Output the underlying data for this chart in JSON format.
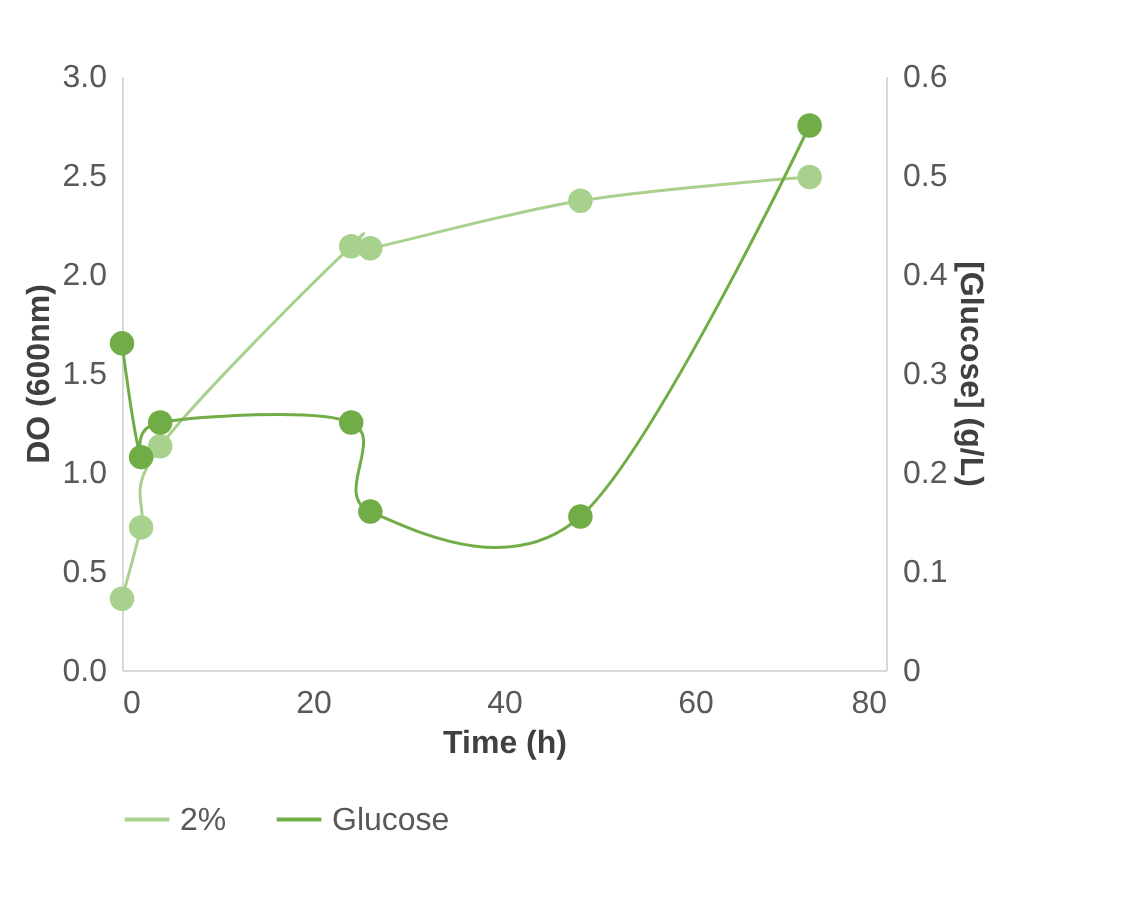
{
  "chart_data": {
    "type": "line",
    "xlabel": "Time (h)",
    "ylabel": "DO (600nm)",
    "y2label": "[Glucose] (g/L)",
    "x": [
      0,
      2,
      4,
      24,
      26,
      48,
      72
    ],
    "series": [
      {
        "name": "2%",
        "color": "#a9d18e",
        "values": [
          0.36,
          0.72,
          1.13,
          2.14,
          2.13,
          2.37,
          2.49
        ]
      },
      {
        "name": "Glucose",
        "color": "#70ad47",
        "axis": "y2",
        "values": [
          0.33,
          0.215,
          0.25,
          0.25,
          0.16,
          0.155,
          0.55
        ]
      }
    ],
    "xlim": [
      0,
      80
    ],
    "xticks": [
      0,
      20,
      40,
      60,
      80
    ],
    "ylim": [
      0,
      3
    ],
    "yticks": [
      {
        "value": 0,
        "label": "0.0"
      },
      {
        "value": 0.5,
        "label": "0.5"
      },
      {
        "value": 1,
        "label": "1.0"
      },
      {
        "value": 1.5,
        "label": "1.5"
      },
      {
        "value": 2,
        "label": "2.0"
      },
      {
        "value": 2.5,
        "label": "2.5"
      },
      {
        "value": 3,
        "label": "3.0"
      }
    ],
    "y2lim": [
      0,
      0.6
    ],
    "y2ticks": [
      0,
      0.1,
      0.2,
      0.3,
      0.4,
      0.5,
      0.6
    ],
    "grid": false,
    "legend": "bottom",
    "marker": "circle",
    "line_style": "solid"
  }
}
